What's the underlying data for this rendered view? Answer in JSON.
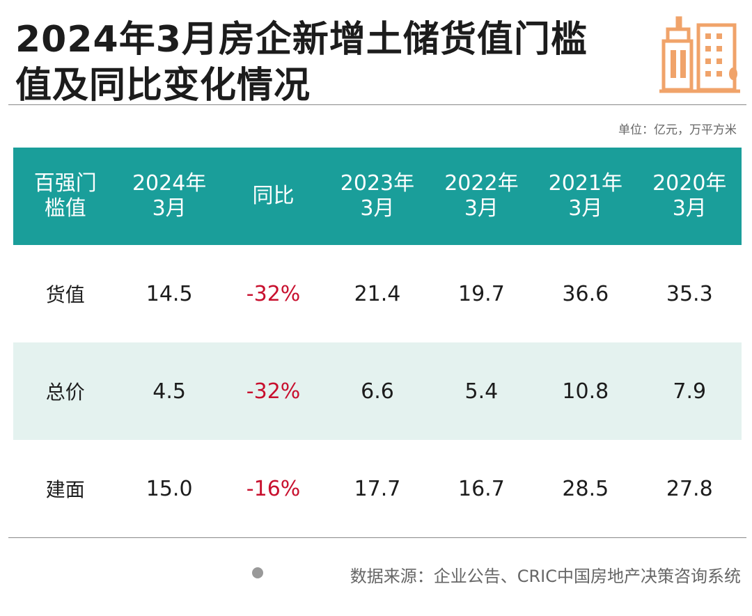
{
  "title_lines": [
    "2024年3月房企新增土储货值门槛",
    "值及同比变化情况"
  ],
  "unit": "单位：亿元，万平方米",
  "table": {
    "header": [
      [
        "百强门",
        "槛值"
      ],
      [
        "2024年",
        "3月"
      ],
      [
        "同比"
      ],
      [
        "2023年",
        "3月"
      ],
      [
        "2022年",
        "3月"
      ],
      [
        "2021年",
        "3月"
      ],
      [
        "2020年",
        "3月"
      ]
    ],
    "rows": [
      [
        "货值",
        "14.5",
        "-32%",
        "21.4",
        "19.7",
        "36.6",
        "35.3"
      ],
      [
        "总价",
        "4.5",
        "-32%",
        "6.6",
        "5.4",
        "10.8",
        "7.9"
      ],
      [
        "建面",
        "15.0",
        "-16%",
        "17.7",
        "16.7",
        "28.5",
        "27.8"
      ]
    ]
  },
  "source": "数据来源：企业公告、CRIC中国房地产决策咨询系统"
}
